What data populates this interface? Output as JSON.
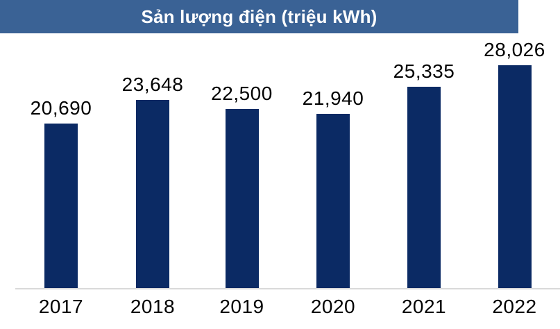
{
  "chart_data": {
    "type": "bar",
    "title": "Sản lượng điện (triệu kWh)",
    "categories": [
      "2017",
      "2018",
      "2019",
      "2020",
      "2021",
      "2022"
    ],
    "values": [
      20690,
      23648,
      22500,
      21940,
      25335,
      28026
    ],
    "value_labels": [
      "20,690",
      "23,648",
      "22,500",
      "21,940",
      "25,335",
      "28,026"
    ],
    "xlabel": "",
    "ylabel": "",
    "ylim": [
      0,
      30000
    ],
    "grid": false,
    "legend": "none",
    "colors": {
      "bar": "#0b2a64",
      "title_banner_bg": "#3a6295",
      "title_text": "#ffffff",
      "label_text": "#000000",
      "axis_line": "#d9d9d9",
      "background": "#ffffff"
    }
  }
}
